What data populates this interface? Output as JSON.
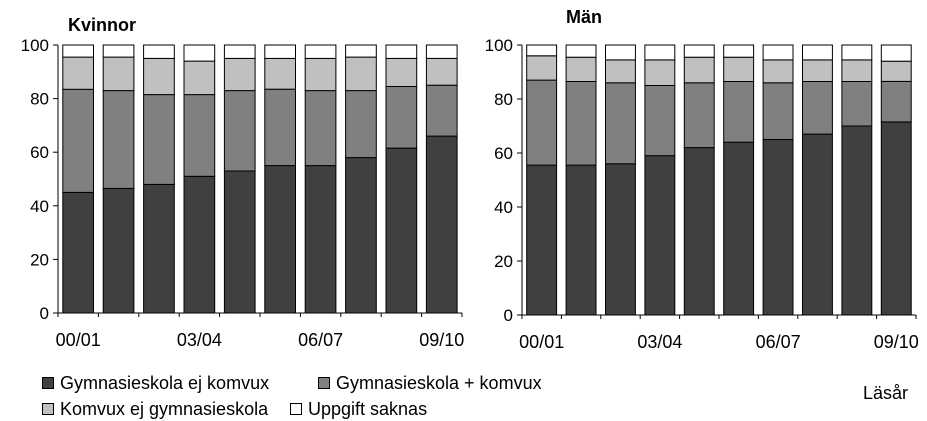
{
  "colors": {
    "gymn_ej_komvux": "#404040",
    "gymn_plus_komvux": "#808080",
    "komvux_ej_gymn": "#c0c0c0",
    "uppgift_saknas": "#ffffff"
  },
  "legend": [
    {
      "label": "Gymnasieskola ej komvux",
      "color": "#404040"
    },
    {
      "label": "Gymnasieskola + komvux",
      "color": "#808080"
    },
    {
      "label": "Komvux ej gymnasieskola",
      "color": "#c0c0c0"
    },
    {
      "label": "Uppgift saknas",
      "color": "#ffffff"
    }
  ],
  "unit_label": "Läsår",
  "chart_data": [
    {
      "type": "bar",
      "stacked": true,
      "title": "Kvinnor",
      "xlabel": "",
      "ylabel": "",
      "ylim": [
        0,
        100
      ],
      "yticks": [
        0,
        20,
        40,
        60,
        80,
        100
      ],
      "categories": [
        "00/01",
        "01/02",
        "02/03",
        "03/04",
        "04/05",
        "05/06",
        "06/07",
        "07/08",
        "08/09",
        "09/10"
      ],
      "xtick_labels": [
        "00/01",
        "03/04",
        "06/07",
        "09/10"
      ],
      "series": [
        {
          "name": "Gymnasieskola ej komvux",
          "values": [
            45,
            46.5,
            48,
            51,
            53,
            55,
            55,
            58,
            61.5,
            66
          ]
        },
        {
          "name": "Gymnasieskola + komvux",
          "values": [
            38.5,
            36.5,
            33.5,
            30.5,
            30,
            28.5,
            28,
            25,
            23,
            19
          ]
        },
        {
          "name": "Komvux ej gymnasieskola",
          "values": [
            12,
            12.5,
            13.5,
            12.5,
            12,
            11.5,
            12,
            12.5,
            10.5,
            10
          ]
        },
        {
          "name": "Uppgift saknas",
          "values": [
            4.5,
            4.5,
            5,
            6,
            5,
            5,
            5,
            4.5,
            5,
            5
          ]
        }
      ]
    },
    {
      "type": "bar",
      "stacked": true,
      "title": "Män",
      "xlabel": "",
      "ylabel": "",
      "ylim": [
        0,
        100
      ],
      "yticks": [
        0,
        20,
        40,
        60,
        80,
        100
      ],
      "categories": [
        "00/01",
        "01/02",
        "02/03",
        "03/04",
        "04/05",
        "05/06",
        "06/07",
        "07/08",
        "08/09",
        "09/10"
      ],
      "xtick_labels": [
        "00/01",
        "03/04",
        "06/07",
        "09/10"
      ],
      "series": [
        {
          "name": "Gymnasieskola ej komvux",
          "values": [
            55.5,
            55.5,
            56,
            59,
            62,
            64,
            65,
            67,
            70,
            71.5
          ]
        },
        {
          "name": "Gymnasieskola + komvux",
          "values": [
            31.5,
            31,
            30,
            26,
            24,
            22.5,
            21,
            19.5,
            16.5,
            15
          ]
        },
        {
          "name": "Komvux ej gymnasieskola",
          "values": [
            9,
            9,
            8.5,
            9.5,
            9.5,
            9,
            8.5,
            8,
            8,
            7.5
          ]
        },
        {
          "name": "Uppgift saknas",
          "values": [
            4,
            4.5,
            5.5,
            5.5,
            4.5,
            4.5,
            5.5,
            5.5,
            5.5,
            6
          ]
        }
      ]
    }
  ]
}
